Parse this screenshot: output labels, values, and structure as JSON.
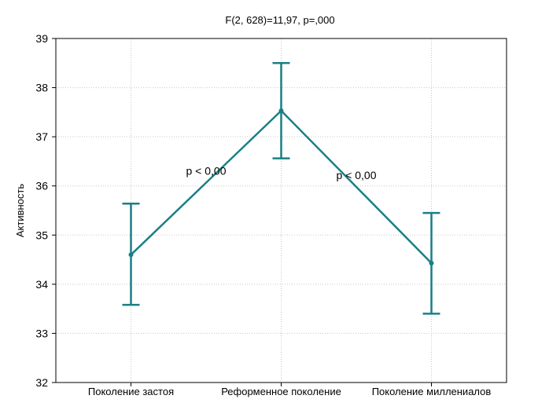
{
  "chart_data": {
    "type": "line",
    "title": "F(2, 628)=11,97, p=,000",
    "xlabel": "",
    "ylabel": "Активность",
    "categories": [
      "Поколение застоя",
      "Реформенное поколение",
      "Поколение миллениалов"
    ],
    "series": [
      {
        "values": [
          34.6,
          37.53,
          34.43
        ],
        "error_low": [
          33.58,
          36.56,
          33.4
        ],
        "error_high": [
          35.64,
          38.5,
          35.45
        ],
        "color": "#1a7f86"
      }
    ],
    "ylim": [
      32,
      39
    ],
    "yticks": [
      "32",
      "33",
      "34",
      "35",
      "36",
      "37",
      "38",
      "39"
    ],
    "grid": true,
    "annotations": [
      {
        "text": "p < 0,00",
        "between": [
          "Поколение застоя",
          "Реформенное поколение"
        ]
      },
      {
        "text": "p < 0,00",
        "between": [
          "Реформенное поколение",
          "Поколение миллениалов"
        ]
      }
    ]
  }
}
